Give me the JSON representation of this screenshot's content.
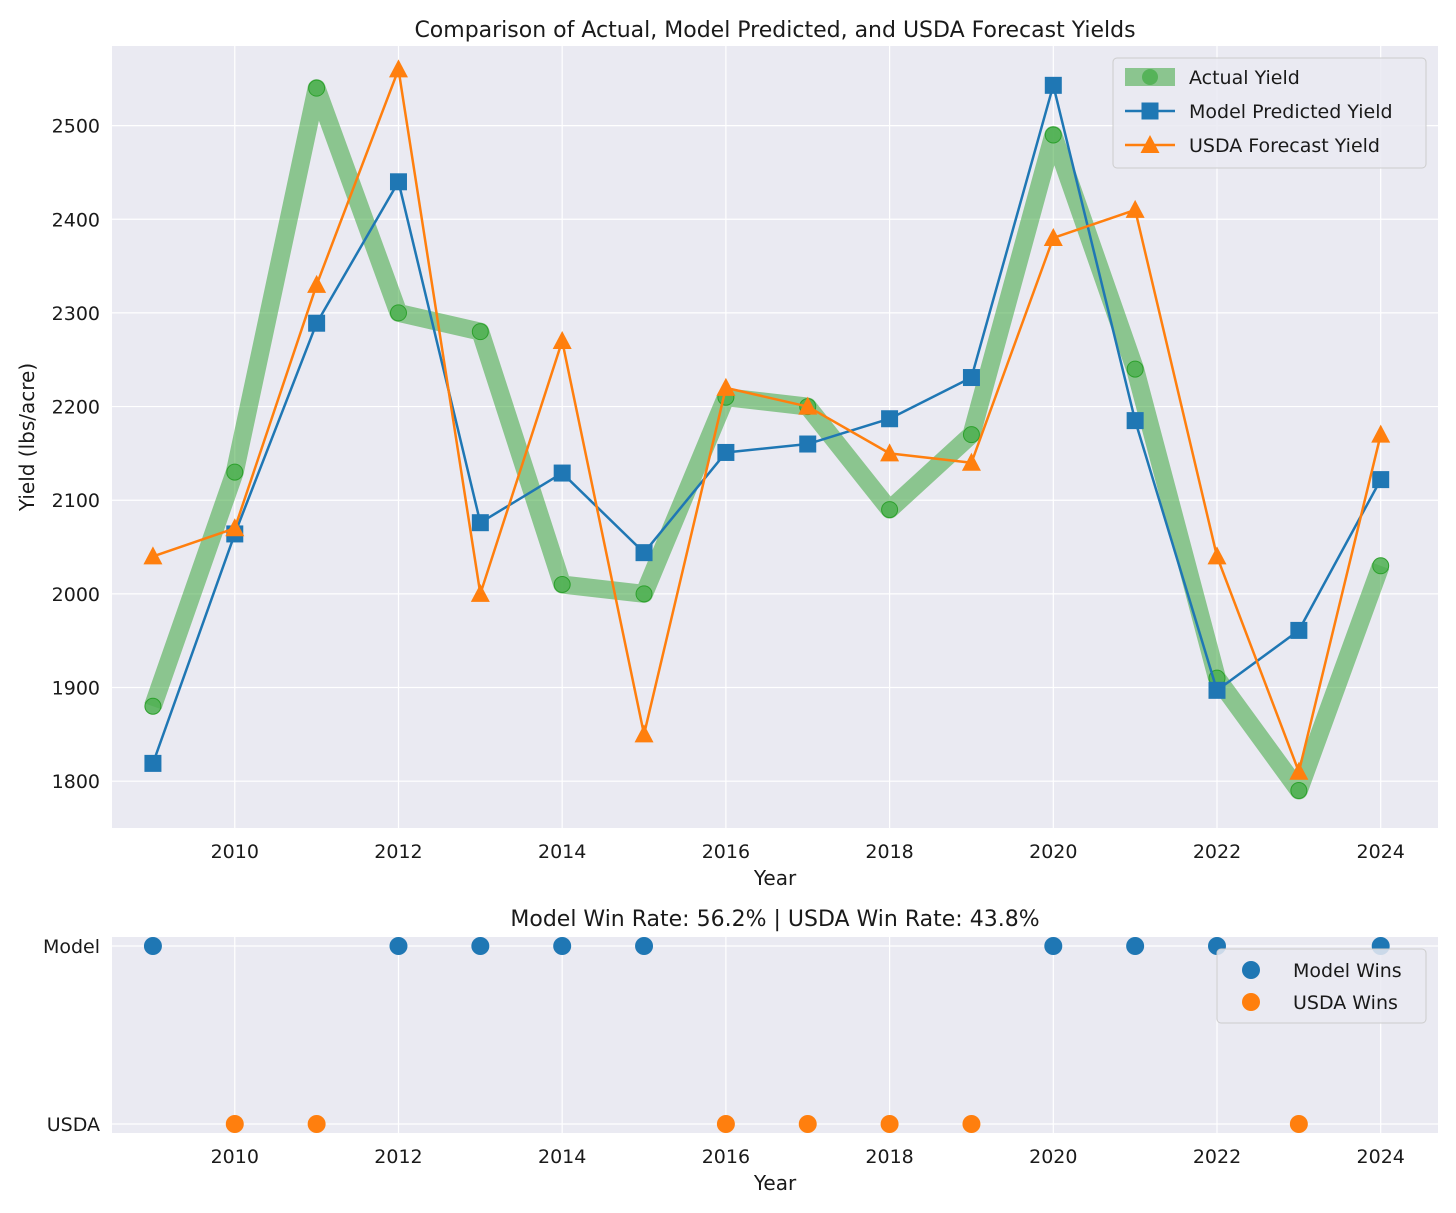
{
  "chart_data": [
    {
      "type": "line",
      "title": "Comparison of Actual, Model Predicted, and USDA Forecast Yields",
      "xlabel": "Year",
      "ylabel": "Yield (lbs/acre)",
      "xlim": [
        2008.5,
        2024.7
      ],
      "ylim": [
        1750,
        2585
      ],
      "x_ticks": [
        2010,
        2012,
        2014,
        2016,
        2018,
        2020,
        2022,
        2024
      ],
      "y_ticks": [
        1800,
        1900,
        2000,
        2100,
        2200,
        2300,
        2400,
        2500
      ],
      "grid": true,
      "legend_position": "top-right",
      "x": [
        2009,
        2010,
        2011,
        2012,
        2013,
        2014,
        2015,
        2016,
        2017,
        2018,
        2019,
        2020,
        2021,
        2022,
        2023,
        2024
      ],
      "series": [
        {
          "name": "Actual Yield",
          "color": "#2ca02c",
          "marker": "circle",
          "values": [
            1880,
            2130,
            2540,
            2300,
            2280,
            2010,
            2000,
            2210,
            2200,
            2090,
            2170,
            2490,
            2240,
            1910,
            1790,
            2030
          ]
        },
        {
          "name": "Model Predicted Yield",
          "color": "#1f77b4",
          "marker": "square",
          "values": [
            1819,
            2064,
            2289,
            2440,
            2076,
            2129,
            2044,
            2151,
            2160,
            2187,
            2231,
            2543,
            2185,
            1897,
            1961,
            2122
          ]
        },
        {
          "name": "USDA Forecast Yield",
          "color": "#ff7f0e",
          "marker": "triangle",
          "values": [
            2040,
            2070,
            2330,
            2560,
            2000,
            2270,
            1850,
            2220,
            2200,
            2150,
            2140,
            2380,
            2410,
            2040,
            1810,
            2170
          ]
        }
      ]
    },
    {
      "type": "scatter",
      "title": "Model Win Rate: 56.2% | USDA Win Rate: 43.8%",
      "xlabel": "Year",
      "xlim": [
        2008.5,
        2024.7
      ],
      "x_ticks": [
        2010,
        2012,
        2014,
        2016,
        2018,
        2020,
        2022,
        2024
      ],
      "y_categories": [
        "USDA",
        "Model"
      ],
      "grid": true,
      "legend_position": "top-right",
      "series": [
        {
          "name": "Model Wins",
          "color": "#1f77b4",
          "category": "Model",
          "x": [
            2009,
            2012,
            2013,
            2014,
            2015,
            2020,
            2021,
            2022,
            2024
          ]
        },
        {
          "name": "USDA Wins",
          "color": "#ff7f0e",
          "category": "USDA",
          "x": [
            2010,
            2011,
            2016,
            2017,
            2018,
            2019,
            2023
          ]
        }
      ]
    }
  ]
}
